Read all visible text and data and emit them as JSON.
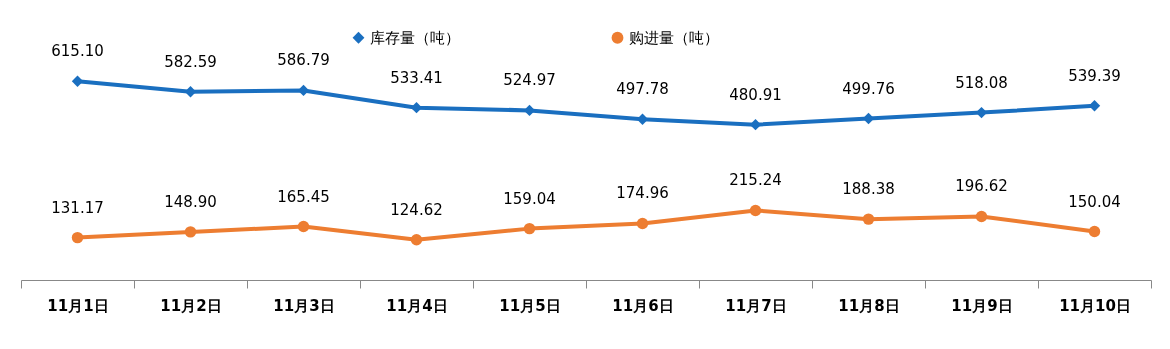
{
  "chart_data": {
    "type": "line",
    "categories": [
      "11月1日",
      "11月2日",
      "11月3日",
      "11月4日",
      "11月5日",
      "11月6日",
      "11月7日",
      "11月8日",
      "11月9日",
      "11月10日"
    ],
    "series": [
      {
        "name": "库存量（吨）",
        "color": "#1a6fc0",
        "marker": "diamond",
        "line_style": "solid",
        "values": [
          615.1,
          582.59,
          586.79,
          533.41,
          524.97,
          497.78,
          480.91,
          499.76,
          518.08,
          539.39
        ],
        "value_labels": [
          "615.10",
          "582.59",
          "586.79",
          "533.41",
          "524.97",
          "497.78",
          "480.91",
          "499.76",
          "518.08",
          "539.39"
        ]
      },
      {
        "name": "购进量（吨）",
        "color": "#ed7d31",
        "marker": "circle",
        "line_style": "solid",
        "values": [
          131.17,
          148.9,
          165.45,
          124.62,
          159.04,
          174.96,
          215.24,
          188.38,
          196.62,
          150.04
        ],
        "value_labels": [
          "131.17",
          "148.90",
          "165.45",
          "124.62",
          "159.04",
          "174.96",
          "215.24",
          "188.38",
          "196.62",
          "150.04"
        ]
      }
    ],
    "data_labels": true,
    "legend": "top",
    "grid": false
  }
}
